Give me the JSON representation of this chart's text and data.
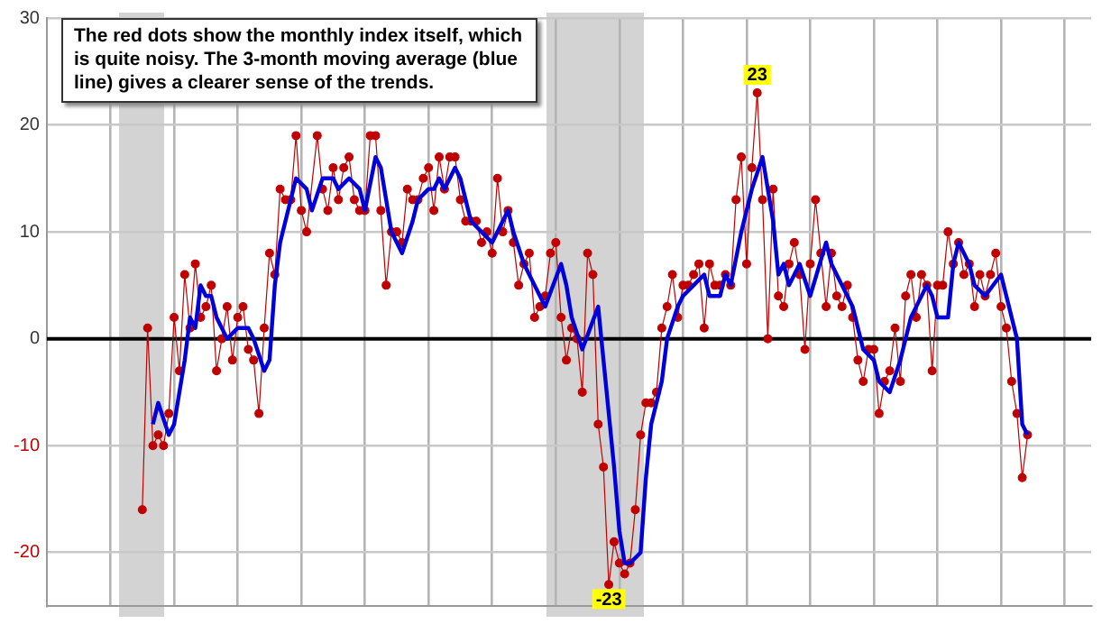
{
  "chart_data": {
    "type": "line",
    "categories": [
      null,
      null,
      null,
      null,
      null,
      null,
      null,
      null,
      null,
      null,
      null,
      null,
      null,
      null,
      null,
      null,
      null,
      null,
      null,
      null,
      null,
      null,
      null,
      null,
      null,
      null,
      null,
      null,
      null,
      null,
      null,
      null,
      null,
      null,
      null,
      null,
      null,
      null,
      null,
      null,
      null,
      null,
      null,
      null,
      null,
      null,
      null,
      null,
      null,
      null,
      null,
      null,
      null,
      null,
      null,
      null,
      null,
      null,
      null,
      null,
      null,
      null,
      null,
      null,
      null,
      null,
      null,
      null,
      null,
      null,
      null,
      null,
      null,
      null,
      null,
      null,
      null,
      null,
      null,
      null,
      null,
      null,
      null,
      null,
      null,
      null,
      null,
      null,
      null,
      null,
      null,
      null,
      null,
      null,
      null,
      null,
      null,
      null,
      null,
      null,
      null,
      null,
      null,
      null,
      null,
      null,
      null,
      null,
      null,
      null,
      null,
      null,
      null,
      null,
      null,
      null,
      null,
      null,
      null,
      null,
      null,
      null,
      null,
      null,
      null,
      null,
      null,
      null,
      null,
      null,
      null,
      null,
      null,
      null,
      null,
      null,
      null,
      null,
      null,
      null,
      null,
      null,
      null,
      null,
      null,
      null,
      null,
      null,
      null,
      null,
      null,
      null,
      null,
      null,
      null,
      null,
      null,
      null,
      null,
      null,
      null,
      null,
      null,
      null,
      null,
      null,
      null,
      null,
      null,
      null,
      null,
      null,
      null,
      null,
      null,
      null,
      null,
      null,
      null,
      null,
      null,
      null,
      null,
      null,
      null,
      null,
      null,
      null,
      null,
      null,
      null,
      null,
      null,
      null,
      null,
      null,
      null,
      null
    ],
    "ylim": [
      -25,
      30
    ],
    "yticks": [
      -20,
      -10,
      0,
      10,
      20,
      30
    ],
    "grid": true,
    "legend": false,
    "tick_labels": "y",
    "series": [
      {
        "color": "#c00000",
        "marker": "circle",
        "values": [
          null,
          null,
          null,
          null,
          null,
          null,
          null,
          null,
          null,
          null,
          null,
          null,
          null,
          null,
          null,
          null,
          null,
          null,
          -16,
          1,
          -10,
          -9,
          -10,
          -7,
          2,
          -3,
          6,
          1,
          7,
          2,
          3,
          5,
          -3,
          0,
          3,
          -2,
          2,
          3,
          -1,
          -2,
          -7,
          1,
          8,
          6,
          14,
          13,
          13,
          19,
          12,
          10,
          null,
          19,
          14,
          12,
          16,
          13,
          16,
          17,
          13,
          12,
          12,
          19,
          19,
          12,
          5,
          10,
          10,
          9,
          14,
          13,
          13,
          15,
          16,
          12,
          17,
          14,
          17,
          17,
          13,
          11,
          11,
          11,
          9,
          10,
          8,
          15,
          10,
          12,
          9,
          5,
          7,
          8,
          2,
          3,
          4,
          8,
          9,
          2,
          -2,
          1,
          0,
          -5,
          8,
          6,
          -8,
          -12,
          -23,
          -19,
          -21,
          -22,
          -21,
          -16,
          -9,
          -6,
          -6,
          -5,
          1,
          3,
          6,
          2,
          5,
          5,
          6,
          7,
          1,
          7,
          5,
          5,
          6,
          5,
          13,
          17,
          7,
          16,
          23,
          13,
          0,
          14,
          4,
          3,
          7,
          9,
          6,
          -1,
          7,
          13,
          8,
          3,
          8,
          4,
          3,
          5,
          2,
          -2,
          -4,
          -1,
          -1,
          -7,
          -4,
          -3,
          1,
          -4,
          4,
          6,
          2,
          6,
          5,
          -3,
          5,
          5,
          10,
          7,
          9,
          6,
          7,
          3,
          6,
          4,
          6,
          8,
          3,
          1,
          -4,
          -7,
          -13,
          -9,
          null,
          null,
          null,
          null,
          null,
          null,
          null,
          null,
          null,
          null,
          null,
          null
        ]
      },
      {
        "color": "#0000dd",
        "marker": "none",
        "values": [
          null,
          null,
          null,
          null,
          null,
          null,
          null,
          null,
          null,
          null,
          null,
          null,
          null,
          null,
          null,
          null,
          null,
          null,
          null,
          null,
          -8,
          -6,
          null,
          -9,
          -8,
          -5,
          -2,
          2,
          1,
          5,
          4,
          4,
          2,
          null,
          0,
          null,
          1,
          1,
          1,
          0,
          null,
          -3,
          -2,
          5,
          9,
          null,
          13,
          15,
          null,
          14,
          12,
          null,
          15,
          null,
          15,
          14,
          null,
          15,
          null,
          14,
          12,
          null,
          17,
          16,
          null,
          10,
          null,
          8,
          null,
          11,
          13,
          null,
          14,
          14,
          15,
          14,
          null,
          16,
          15,
          13,
          11,
          null,
          10,
          null,
          9,
          null,
          11,
          12,
          10,
          null,
          7,
          null,
          5,
          null,
          3,
          null,
          null,
          7,
          5,
          2,
          null,
          -1,
          null,
          null,
          3,
          -2,
          null,
          -12,
          -18,
          -21,
          -21,
          null,
          -20,
          -13,
          -8,
          null,
          -4,
          0,
          null,
          3,
          4,
          null,
          5,
          null,
          6,
          4,
          null,
          4,
          6,
          5,
          null,
          10,
          null,
          14,
          null,
          17,
          null,
          11,
          6,
          7,
          5,
          null,
          7,
          null,
          4,
          null,
          null,
          9,
          7,
          null,
          5,
          null,
          3,
          null,
          -1,
          null,
          -2,
          -4,
          null,
          -5,
          null,
          -2,
          null,
          2,
          null,
          null,
          5,
          4,
          2,
          null,
          2,
          7,
          9,
          null,
          7,
          5,
          null,
          4,
          null,
          null,
          6,
          4,
          null,
          0,
          -8,
          -9,
          null,
          null,
          null,
          null,
          null,
          null,
          null,
          null,
          null,
          null,
          null,
          null
        ]
      }
    ],
    "ref_lines": [
      {
        "axis": "y",
        "value": 0,
        "color": "#000000"
      }
    ],
    "annotations": [
      "The red dots show the monthly index itself, which is quite noisy. The 3-month moving average (blue line) gives a clearer sense of the trends.",
      {
        "text": "23",
        "y": 23
      },
      {
        "text": "-23",
        "y": -23
      }
    ]
  }
}
